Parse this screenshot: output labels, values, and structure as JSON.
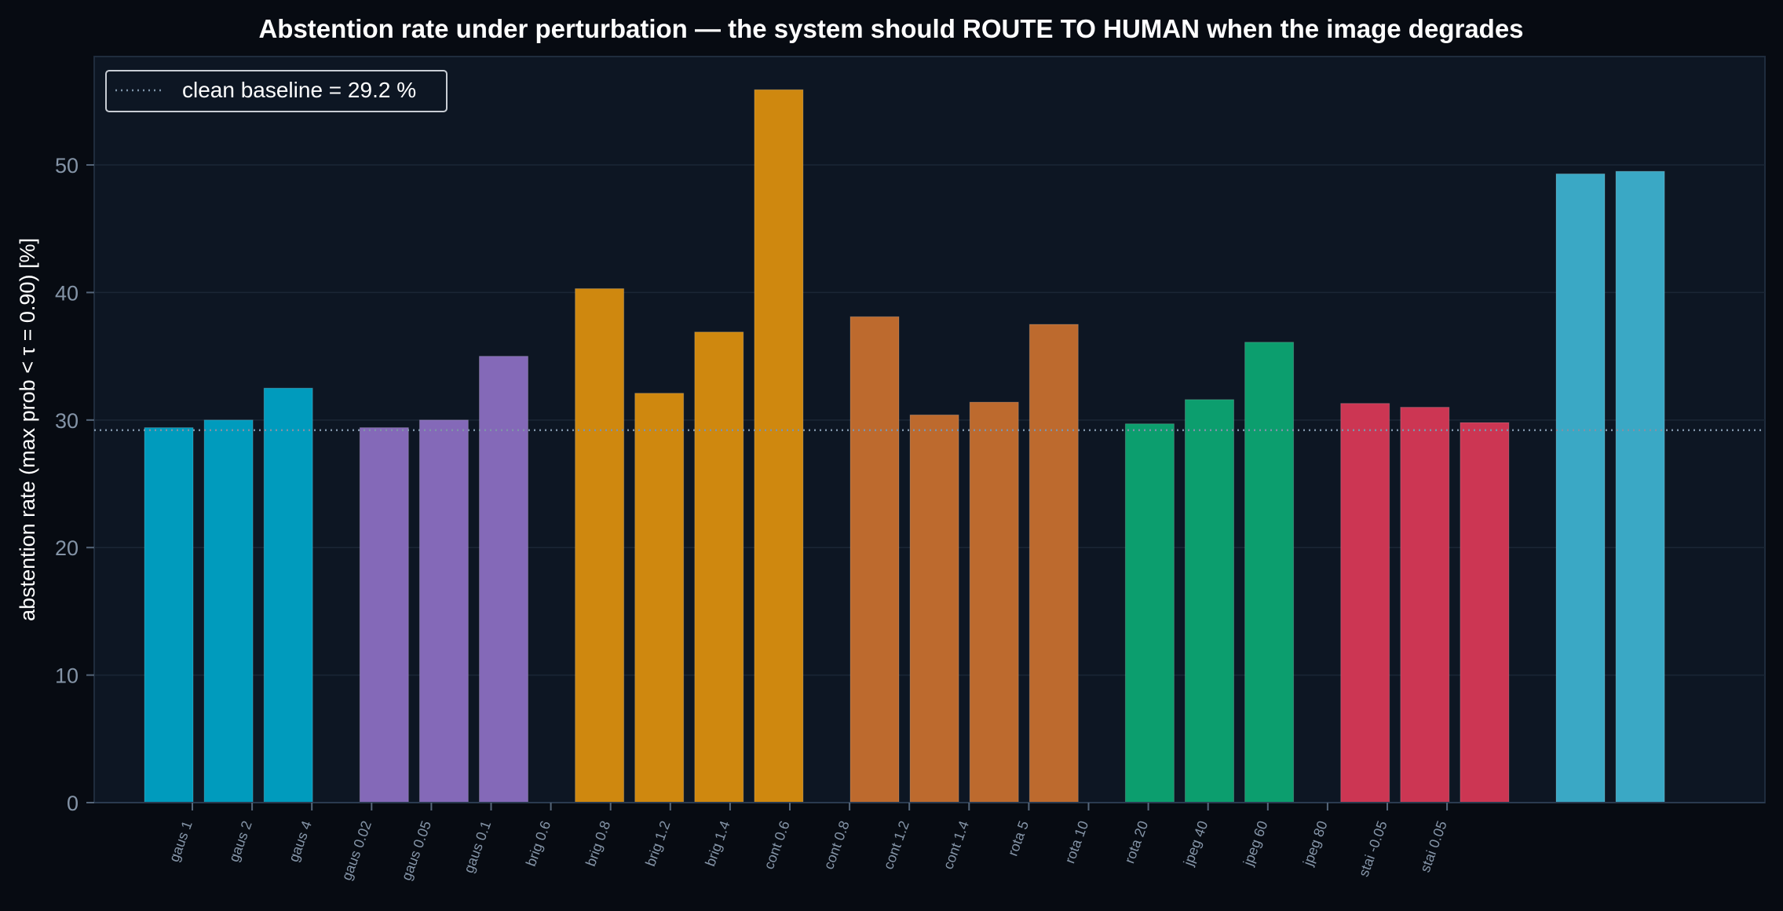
{
  "chart_data": {
    "type": "bar",
    "title": "Abstention rate under perturbation — the system should ROUTE TO HUMAN when the image degrades",
    "ylabel": "abstention rate (max prob < τ = 0.90)  [%]",
    "xlabel": "",
    "ylim": [
      0,
      58.5
    ],
    "yticks": [
      0,
      10,
      20,
      30,
      40,
      50
    ],
    "grid": true,
    "legend": {
      "placement": "top-left",
      "label": "clean baseline = 29.2 %"
    },
    "baseline": {
      "value": 29.2,
      "style": "dotted",
      "color": "#7f93a8"
    },
    "colors": {
      "background": "#070b12",
      "plot_background": "#0d1623",
      "gaussian": "#009bbd",
      "gaussian_blur": "#8469b8",
      "brightness": "#cf880f",
      "contrast": "#bd6a2e",
      "jpeg": "#0c9e6e",
      "rotate": "#cc3653",
      "stain": "#3aa8c5"
    },
    "bars": [
      {
        "value": 29.4,
        "color": "#009bbd"
      },
      {
        "value": 30.0,
        "color": "#009bbd"
      },
      {
        "value": 32.5,
        "color": "#009bbd"
      },
      {
        "value": 29.4,
        "color": "#8469b8"
      },
      {
        "value": 30.0,
        "color": "#8469b8"
      },
      {
        "value": 35.0,
        "color": "#8469b8"
      },
      {
        "value": 40.3,
        "color": "#cf880f"
      },
      {
        "value": 32.1,
        "color": "#cf880f"
      },
      {
        "value": 36.9,
        "color": "#cf880f"
      },
      {
        "value": 55.9,
        "color": "#cf880f"
      },
      {
        "value": 38.1,
        "color": "#bd6a2e"
      },
      {
        "value": 30.4,
        "color": "#bd6a2e"
      },
      {
        "value": 31.4,
        "color": "#bd6a2e"
      },
      {
        "value": 37.5,
        "color": "#bd6a2e"
      },
      {
        "value": 29.7,
        "color": "#0c9e6e"
      },
      {
        "value": 31.6,
        "color": "#0c9e6e"
      },
      {
        "value": 36.1,
        "color": "#0c9e6e"
      },
      {
        "value": 31.3,
        "color": "#cc3653"
      },
      {
        "value": 31.0,
        "color": "#cc3653"
      },
      {
        "value": 29.8,
        "color": "#cc3653"
      },
      {
        "value": 49.3,
        "color": "#3aa8c5"
      },
      {
        "value": 49.5,
        "color": "#3aa8c5"
      }
    ],
    "tick_labels": [
      "gaus 1",
      "gaus 2",
      "gaus 4",
      "gaus 0.02",
      "gaus 0.05",
      "gaus 0.1",
      "brig 0.6",
      "brig 0.8",
      "brig 1.2",
      "brig 1.4",
      "cont 0.6",
      "cont 0.8",
      "cont 1.2",
      "cont 1.4",
      "rota 5",
      "rota 10",
      "rota 20",
      "jpeg 40",
      "jpeg 60",
      "jpeg 80",
      "stai -0.05",
      "stai 0.05"
    ]
  }
}
